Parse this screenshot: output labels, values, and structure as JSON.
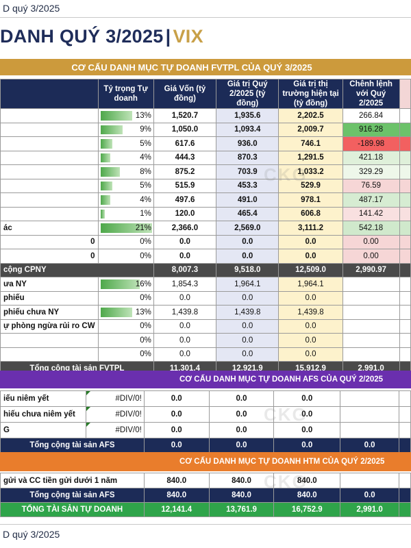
{
  "top_caption": "D quý 3/2025",
  "bottom_caption": "D quý 3/2025",
  "title": {
    "prefix": "DANH QUÝ 3/2025",
    "sep": "|",
    "ticker": "VIX"
  },
  "watermark": "CKG",
  "colors": {
    "navy": "#1c2b57",
    "gold": "#cc9a3c",
    "purple": "#6a2fae",
    "orange": "#e97d2c",
    "green": "#2fa44a",
    "bar_green": "#4ea84a"
  },
  "fvtpl": {
    "banner": "CƠ CẤU DANH MỤC TỰ DOANH FVTPL CỦA QUÝ 3/2025",
    "headers": [
      "Tỷ trọng Tự doanh",
      "Giá Vốn (tỷ đồng)",
      "Giá trị Quý 2/2025 (tỷ đồng)",
      "Giá trị thị trường hiện tại (tỷ đồng)",
      "Chênh lệnh với Quý 2/2025"
    ],
    "rows": [
      {
        "label": "",
        "pct": "13%",
        "pct_value": 0.13,
        "gv": "1,520.7",
        "gt": "1,935.6",
        "tt": "2,202.5",
        "cl": "266.84",
        "cl_color": "#ffffff"
      },
      {
        "label": "",
        "pct": "9%",
        "pct_value": 0.09,
        "gv": "1,050.0",
        "gt": "1,093.4",
        "tt": "2,009.7",
        "cl": "916.28",
        "cl_color": "#6cc26a"
      },
      {
        "label": "",
        "pct": "5%",
        "pct_value": 0.05,
        "gv": "617.6",
        "gt": "936.0",
        "tt": "746.1",
        "cl": "-189.98",
        "cl_color": "#f26060"
      },
      {
        "label": "",
        "pct": "4%",
        "pct_value": 0.04,
        "gv": "444.3",
        "gt": "870.3",
        "tt": "1,291.5",
        "cl": "421.18",
        "cl_color": "#dff0da"
      },
      {
        "label": "",
        "pct": "8%",
        "pct_value": 0.08,
        "gv": "875.2",
        "gt": "703.9",
        "tt": "1,033.2",
        "cl": "329.29",
        "cl_color": "#eef7ea"
      },
      {
        "label": "",
        "pct": "5%",
        "pct_value": 0.05,
        "gv": "515.9",
        "gt": "453.3",
        "tt": "529.9",
        "cl": "76.59",
        "cl_color": "#f6d6d6"
      },
      {
        "label": "",
        "pct": "4%",
        "pct_value": 0.04,
        "gv": "497.6",
        "gt": "491.0",
        "tt": "978.1",
        "cl": "487.17",
        "cl_color": "#d6ecd2"
      },
      {
        "label": "",
        "pct": "1%",
        "pct_value": 0.01,
        "gv": "120.0",
        "gt": "465.4",
        "tt": "606.8",
        "cl": "141.42",
        "cl_color": "#f8e0e0"
      },
      {
        "label": "ác",
        "pct": "21%",
        "pct_value": 0.21,
        "gv": "2,366.0",
        "gt": "2,569.0",
        "tt": "3,111.2",
        "cl": "542.18",
        "cl_color": "#d0e9cc"
      },
      {
        "label": "0",
        "pct": "0%",
        "pct_value": 0,
        "gv": "0.0",
        "gt": "0.0",
        "tt": "0.0",
        "cl": "0.00",
        "cl_color": "#f6d6d6"
      },
      {
        "label": "0",
        "pct": "0%",
        "pct_value": 0,
        "gv": "0.0",
        "gt": "0.0",
        "tt": "0.0",
        "cl": "0.00",
        "cl_color": "#f6d6d6"
      }
    ],
    "subtotal": {
      "label": "cộng CPNY",
      "gv": "8,007.3",
      "gt": "9,518.0",
      "tt": "12,509.0",
      "cl": "2,990.97"
    },
    "rows2": [
      {
        "label": "ưa NY",
        "pct": "16%",
        "pct_value": 0.16,
        "gv": "1,854.3",
        "gt": "1,964.1",
        "tt": "1,964.1"
      },
      {
        "label": "phiếu",
        "pct": "0%",
        "pct_value": 0,
        "gv": "0.0",
        "gt": "0.0",
        "tt": "0.0"
      },
      {
        "label": "phiếu chưa NY",
        "pct": "13%",
        "pct_value": 0.13,
        "gv": "1,439.8",
        "gt": "1,439.8",
        "tt": "1,439.8"
      },
      {
        "label": "ự phòng ngừa rủi ro CW",
        "pct": "0%",
        "pct_value": 0,
        "gv": "0.0",
        "gt": "0.0",
        "tt": "0.0"
      },
      {
        "label": "",
        "pct": "0%",
        "pct_value": 0,
        "gv": "0.0",
        "gt": "0.0",
        "tt": "0.0"
      },
      {
        "label": "",
        "pct": "0%",
        "pct_value": 0,
        "gv": "0.0",
        "gt": "0.0",
        "tt": "0.0"
      }
    ],
    "total": {
      "label": "Tổng cộng tài sản FVTPL",
      "gv": "11,301.4",
      "gt": "12,921.9",
      "tt": "15,912.9",
      "cl": "2,991.0"
    }
  },
  "afs": {
    "banner": "CƠ CẤU DANH MỤC TỰ DOANH AFS CỦA QUÝ 2/2025",
    "rows": [
      {
        "label": "iếu niêm yết",
        "pct": "#DIV/0!",
        "gv": "0.0",
        "gt": "0.0",
        "tt": "0.0"
      },
      {
        "label": "hiếu chưa niêm yết",
        "pct": "#DIV/0!",
        "gv": "0.0",
        "gt": "0.0",
        "tt": "0.0"
      },
      {
        "label": "G",
        "pct": "#DIV/0!",
        "gv": "0.0",
        "gt": "0.0",
        "tt": "0.0"
      }
    ],
    "total": {
      "label": "Tổng cộng tài sản AFS",
      "gv": "0.0",
      "gt": "0.0",
      "tt": "0.0",
      "cl": "0.0"
    }
  },
  "htm": {
    "banner": "CƠ CẤU DANH MỤC TỰ DOANH HTM CỦA QUÝ 2/2025",
    "rows": [
      {
        "label": "gửi và CC tiền gửi dưới 1 năm",
        "gv": "840.0",
        "gt": "840.0",
        "tt": "840.0"
      }
    ],
    "total": {
      "label": "Tổng cộng tài sản AFS",
      "gv": "840.0",
      "gt": "840.0",
      "tt": "840.0",
      "cl": "0.0"
    }
  },
  "grand_total": {
    "label": "TỔNG TÀI SẢN TỰ DOANH",
    "gv": "12,141.4",
    "gt": "13,761.9",
    "tt": "16,752.9",
    "cl": "2,991.0"
  }
}
